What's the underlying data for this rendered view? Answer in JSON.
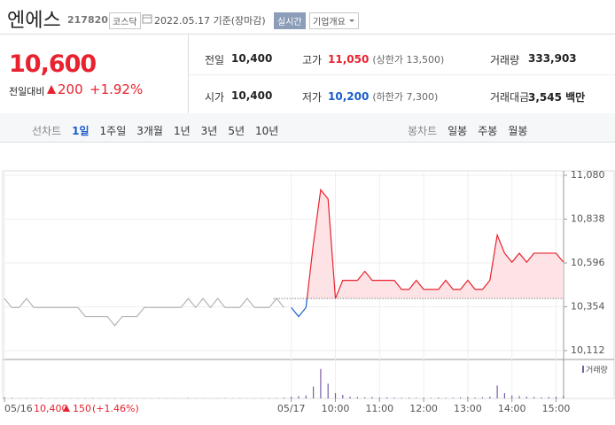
{
  "header": {
    "name": "엔에스",
    "code": "217820",
    "market": "코스닥",
    "date": "2022.05.17 기준(장마감)",
    "realtime": "실시간",
    "company_info": "기업개요"
  },
  "quote": {
    "price": "10,600",
    "change_label": "전일대비",
    "change": "200",
    "pct": "+1.92%"
  },
  "stats": [
    [
      {
        "label": "전일",
        "value": "10,400"
      },
      {
        "label": "고가",
        "value": "11,050",
        "note": "(상한가 13,500)",
        "color": "#e8222f"
      },
      {
        "label": "거래량",
        "value": "333,903"
      }
    ],
    [
      {
        "label": "시가",
        "value": "10,400"
      },
      {
        "label": "저가",
        "value": "10,200",
        "note": "(하한가 7,300)",
        "color": "#1a5dc9"
      },
      {
        "label": "거래대금",
        "value": "3,545 백만"
      }
    ]
  ],
  "tabs": {
    "line_label": "선차트",
    "line_periods": [
      "1일",
      "1주일",
      "3개월",
      "1년",
      "3년",
      "5년",
      "10년"
    ],
    "candle_label": "봉차트",
    "candle_periods": [
      "일봉",
      "주봉",
      "월봉"
    ]
  },
  "chart_data": {
    "type": "line",
    "categories": [
      "05/16",
      null,
      null,
      null,
      null,
      null,
      null,
      null,
      null,
      null,
      null,
      null,
      null,
      null,
      null,
      null,
      null,
      null,
      null,
      null,
      null,
      null,
      null,
      null,
      null,
      null,
      null,
      null,
      null,
      null,
      null,
      null,
      null,
      null,
      null,
      null,
      null,
      null,
      null,
      "05/17",
      null,
      null,
      null,
      null,
      null,
      "10:00",
      null,
      null,
      null,
      null,
      null,
      "11:00",
      null,
      null,
      null,
      null,
      null,
      "12:00",
      null,
      null,
      null,
      null,
      null,
      "13:00",
      null,
      null,
      null,
      null,
      null,
      "14:00",
      null,
      null,
      null,
      null,
      null,
      "15:00",
      null
    ],
    "series": [
      {
        "color": "#b4b4b4",
        "values": [
          10400,
          10350,
          10350,
          10400,
          10350,
          10350,
          10350,
          10350,
          10350,
          10350,
          10350,
          10300,
          10300,
          10300,
          10300,
          10250,
          10300,
          10300,
          10300,
          10350,
          10350,
          10350,
          10350,
          10350,
          10350,
          10400,
          10350,
          10400,
          10350,
          10400,
          10350,
          10350,
          10350,
          10400,
          10350,
          10350,
          10350,
          10400,
          10350,
          null,
          null,
          null,
          null,
          null,
          null,
          null,
          null,
          null,
          null,
          null,
          null,
          null,
          null,
          null,
          null,
          null,
          null,
          null,
          null,
          null,
          null,
          null,
          null,
          null,
          null,
          null,
          null,
          null,
          null,
          null,
          null,
          null,
          null,
          null,
          null,
          null,
          null
        ]
      },
      {
        "color": "#e8222f",
        "color_down": "#1a5dc9",
        "fill": "#fde3e5",
        "values": [
          null,
          null,
          null,
          null,
          null,
          null,
          null,
          null,
          null,
          null,
          null,
          null,
          null,
          null,
          null,
          null,
          null,
          null,
          null,
          null,
          null,
          null,
          null,
          null,
          null,
          null,
          null,
          null,
          null,
          null,
          null,
          null,
          null,
          null,
          null,
          null,
          null,
          null,
          null,
          10350,
          10300,
          10350,
          10700,
          11000,
          10950,
          10400,
          10500,
          10500,
          10500,
          10550,
          10500,
          10500,
          10500,
          10500,
          10450,
          10450,
          10500,
          10450,
          10450,
          10450,
          10500,
          10450,
          10450,
          10500,
          10450,
          10450,
          10500,
          10750,
          10650,
          10600,
          10650,
          10600,
          10650,
          10650,
          10650,
          10650,
          10600
        ]
      }
    ],
    "prev_close": 10400,
    "ylim": [
      10112,
      11080
    ],
    "yticks": [
      {
        "value": 10112,
        "label": "10,112"
      },
      {
        "value": 10354,
        "label": "10,354"
      },
      {
        "value": 10596,
        "label": "10,596"
      },
      {
        "value": 10838,
        "label": "10,838"
      },
      {
        "value": 11080,
        "label": "11,080"
      }
    ],
    "grid": true,
    "volume": {
      "label": "거래량",
      "color": "#7b5ea7",
      "ylim": [
        0,
        60000
      ],
      "values": [
        2000,
        1000,
        500,
        800,
        500,
        600,
        400,
        500,
        300,
        400,
        500,
        600,
        800,
        500,
        400,
        700,
        500,
        400,
        300,
        500,
        400,
        600,
        500,
        400,
        300,
        800,
        500,
        400,
        300,
        500,
        600,
        400,
        500,
        300,
        400,
        500,
        600,
        800,
        1500,
        3000,
        4000,
        5000,
        20000,
        50000,
        25000,
        9000,
        6000,
        3000,
        2500,
        2000,
        2500,
        1500,
        2000,
        1500,
        1200,
        1500,
        1000,
        1200,
        900,
        1500,
        1000,
        1200,
        1800,
        2500,
        1500,
        2000,
        3000,
        22000,
        9000,
        5000,
        4000,
        3000,
        2500,
        2000,
        2500,
        3000,
        4000
      ]
    },
    "footer": {
      "price": "10,400",
      "change": "150",
      "pct": "(+1.46%)"
    }
  }
}
